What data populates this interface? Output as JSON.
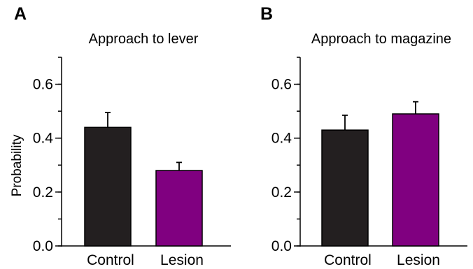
{
  "chart_data": [
    {
      "panel": "A",
      "type": "bar",
      "title": "Approach to lever",
      "xlabel": "",
      "ylabel": "Probability",
      "categories": [
        "Control",
        "Lesion"
      ],
      "values": [
        0.44,
        0.28
      ],
      "errors": [
        0.055,
        0.03
      ],
      "colors": [
        "#231f20",
        "#800080"
      ],
      "ylim": [
        0,
        0.7
      ],
      "yticks": [
        "0.0",
        "0.2",
        "0.4",
        "0.6"
      ],
      "ytick_values": [
        0,
        0.2,
        0.4,
        0.6
      ],
      "grid": false,
      "legend": "none"
    },
    {
      "panel": "B",
      "type": "bar",
      "title": "Approach to magazine",
      "xlabel": "",
      "ylabel": "",
      "categories": [
        "Control",
        "Lesion"
      ],
      "values": [
        0.43,
        0.49
      ],
      "errors": [
        0.055,
        0.045
      ],
      "colors": [
        "#231f20",
        "#800080"
      ],
      "ylim": [
        0,
        0.7
      ],
      "yticks": [
        "0.0",
        "0.2",
        "0.4",
        "0.6"
      ],
      "ytick_values": [
        0,
        0.2,
        0.4,
        0.6
      ],
      "grid": false,
      "legend": "none"
    }
  ]
}
